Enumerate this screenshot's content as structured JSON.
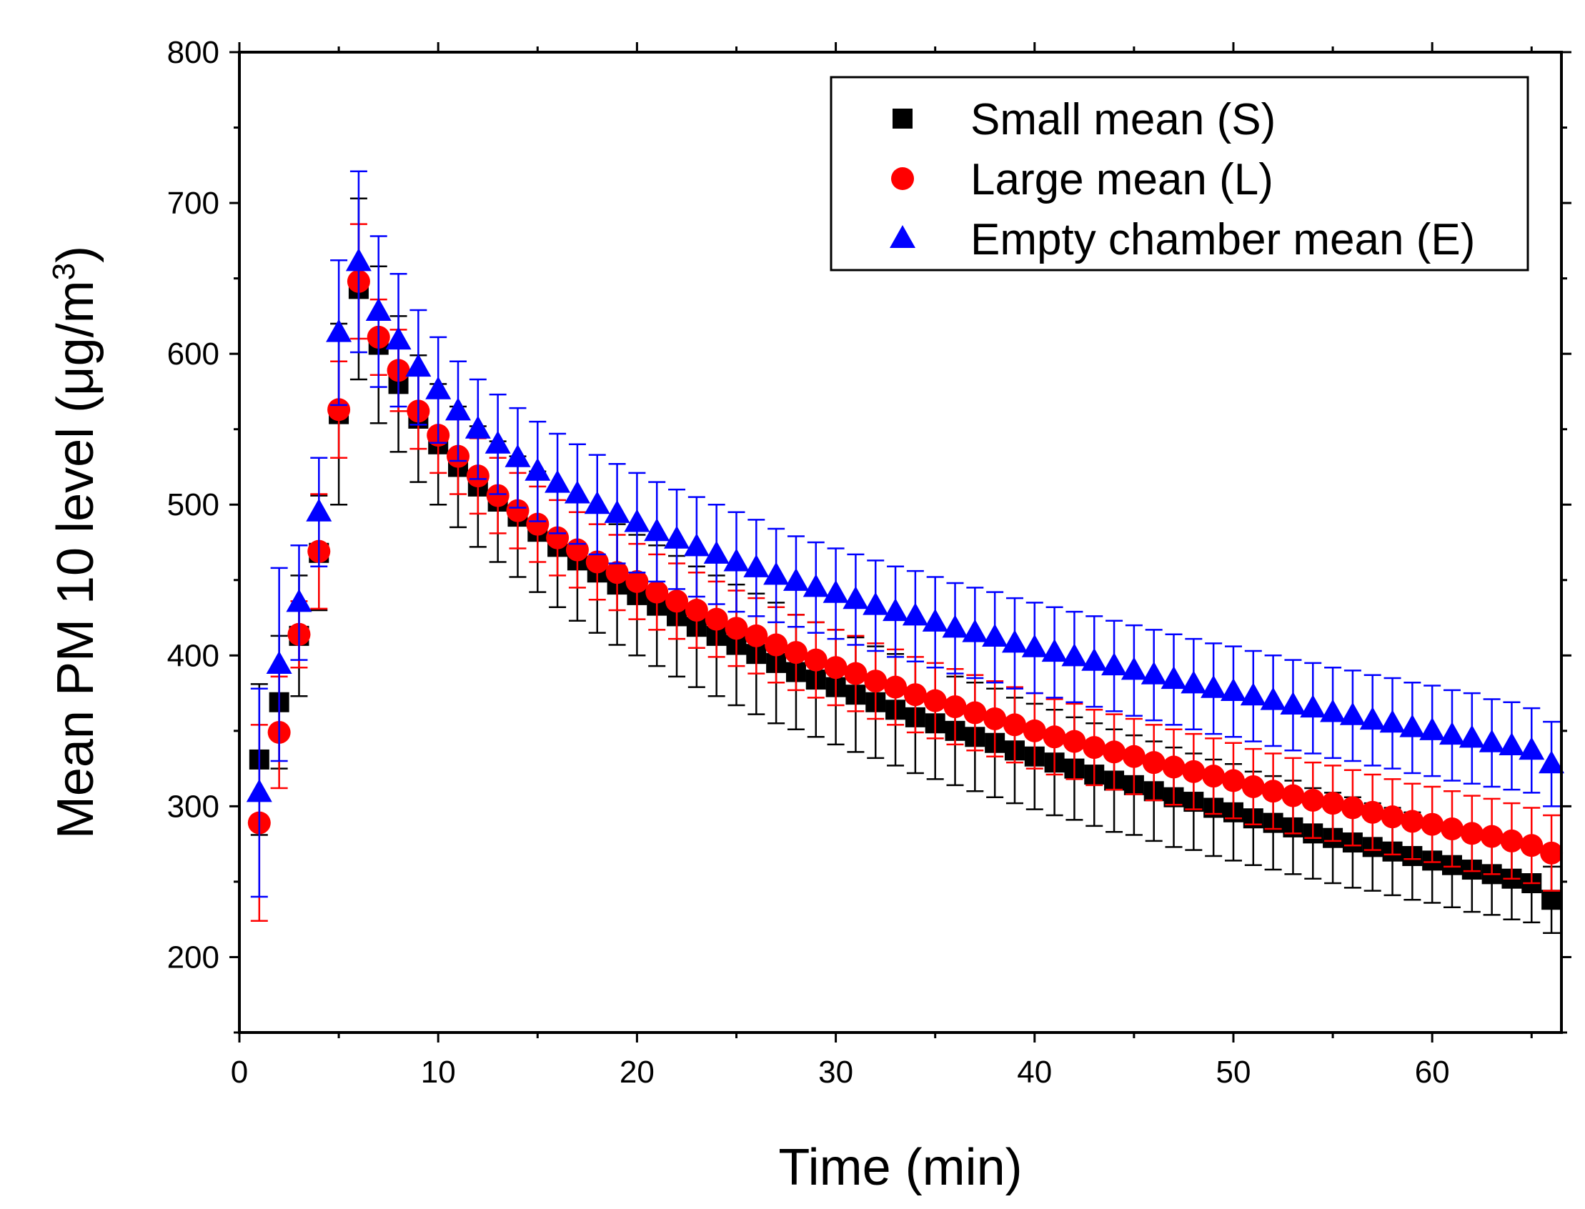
{
  "chart_data": {
    "type": "scatter",
    "xlabel": "Time (min)",
    "ylabel": "Mean PM 10 level (μg/m",
    "ylabel_superscript": "3",
    "ylabel_suffix": ")",
    "xlim": [
      0,
      66.5
    ],
    "ylim": [
      150,
      800
    ],
    "x_ticks": [
      0,
      10,
      20,
      30,
      40,
      50,
      60
    ],
    "y_ticks": [
      200,
      300,
      400,
      500,
      600,
      700,
      800
    ],
    "legend_position": "top-right",
    "x": [
      1,
      2,
      3,
      4,
      5,
      6,
      7,
      8,
      9,
      10,
      11,
      12,
      13,
      14,
      15,
      16,
      17,
      18,
      19,
      20,
      21,
      22,
      23,
      24,
      25,
      26,
      27,
      28,
      29,
      30,
      31,
      32,
      33,
      34,
      35,
      36,
      37,
      38,
      39,
      40,
      41,
      42,
      43,
      44,
      45,
      46,
      47,
      48,
      49,
      50,
      51,
      52,
      53,
      54,
      55,
      56,
      57,
      58,
      59,
      60,
      61,
      62,
      63,
      64,
      65,
      66
    ],
    "series": [
      {
        "name": "Small mean (S)",
        "marker": "square",
        "color": "#000000",
        "values": [
          331,
          369,
          413,
          468,
          560,
          643,
          606,
          580,
          557,
          540,
          525,
          512,
          502,
          492,
          482,
          472,
          463,
          455,
          447,
          440,
          433,
          426,
          419,
          413,
          407,
          401,
          395,
          389,
          384,
          379,
          374,
          369,
          364,
          359,
          355,
          350,
          346,
          342,
          337,
          333,
          329,
          325,
          321,
          317,
          314,
          310,
          306,
          303,
          299,
          296,
          292,
          289,
          286,
          282,
          279,
          276,
          273,
          270,
          267,
          264,
          261,
          258,
          255,
          252,
          249,
          238
        ],
        "errors": [
          50,
          44,
          40,
          38,
          60,
          60,
          52,
          45,
          42,
          40,
          40,
          40,
          40,
          40,
          40,
          40,
          40,
          40,
          40,
          40,
          40,
          40,
          40,
          40,
          40,
          40,
          40,
          38,
          38,
          38,
          38,
          37,
          37,
          37,
          37,
          36,
          36,
          36,
          35,
          35,
          35,
          34,
          34,
          34,
          33,
          33,
          33,
          32,
          32,
          32,
          31,
          31,
          31,
          30,
          30,
          30,
          29,
          29,
          29,
          28,
          28,
          28,
          27,
          27,
          26,
          22
        ]
      },
      {
        "name": "Large mean (L)",
        "marker": "circle",
        "color": "#ff0000",
        "values": [
          289,
          349,
          414,
          469,
          563,
          648,
          611,
          589,
          562,
          546,
          532,
          519,
          506,
          496,
          487,
          478,
          470,
          462,
          455,
          449,
          442,
          436,
          430,
          424,
          418,
          413,
          407,
          402,
          397,
          392,
          388,
          383,
          379,
          374,
          370,
          366,
          362,
          358,
          354,
          350,
          346,
          343,
          339,
          336,
          333,
          329,
          326,
          323,
          320,
          317,
          313,
          310,
          307,
          304,
          302,
          299,
          296,
          293,
          290,
          288,
          285,
          282,
          280,
          277,
          274,
          269
        ],
        "errors": [
          65,
          37,
          22,
          38,
          32,
          38,
          25,
          27,
          25,
          25,
          25,
          25,
          25,
          25,
          25,
          25,
          25,
          25,
          25,
          25,
          25,
          25,
          25,
          25,
          25,
          25,
          25,
          25,
          25,
          25,
          25,
          25,
          25,
          25,
          25,
          25,
          25,
          25,
          25,
          25,
          25,
          25,
          25,
          25,
          25,
          25,
          25,
          25,
          25,
          25,
          25,
          25,
          25,
          25,
          25,
          25,
          25,
          25,
          25,
          25,
          25,
          25,
          25,
          25,
          25,
          25
        ]
      },
      {
        "name": "Empty chamber mean (E)",
        "marker": "triangle",
        "color": "#0000ff",
        "values": [
          309,
          394,
          435,
          495,
          614,
          661,
          628,
          609,
          591,
          576,
          562,
          550,
          540,
          531,
          522,
          514,
          507,
          500,
          494,
          488,
          482,
          477,
          472,
          467,
          462,
          458,
          453,
          449,
          445,
          441,
          437,
          433,
          429,
          426,
          422,
          418,
          415,
          412,
          408,
          405,
          402,
          399,
          396,
          393,
          390,
          387,
          384,
          381,
          378,
          376,
          373,
          370,
          367,
          365,
          362,
          360,
          357,
          355,
          352,
          350,
          347,
          345,
          342,
          340,
          337,
          328
        ],
        "errors": [
          69,
          64,
          38,
          36,
          48,
          60,
          50,
          44,
          38,
          35,
          33,
          33,
          33,
          33,
          33,
          33,
          33,
          33,
          33,
          33,
          33,
          33,
          33,
          33,
          33,
          32,
          31,
          30,
          30,
          30,
          30,
          30,
          30,
          30,
          30,
          30,
          30,
          30,
          30,
          30,
          30,
          30,
          30,
          30,
          30,
          30,
          30,
          30,
          30,
          30,
          30,
          30,
          30,
          30,
          30,
          30,
          30,
          30,
          30,
          30,
          30,
          30,
          29,
          29,
          28,
          28
        ]
      }
    ]
  }
}
